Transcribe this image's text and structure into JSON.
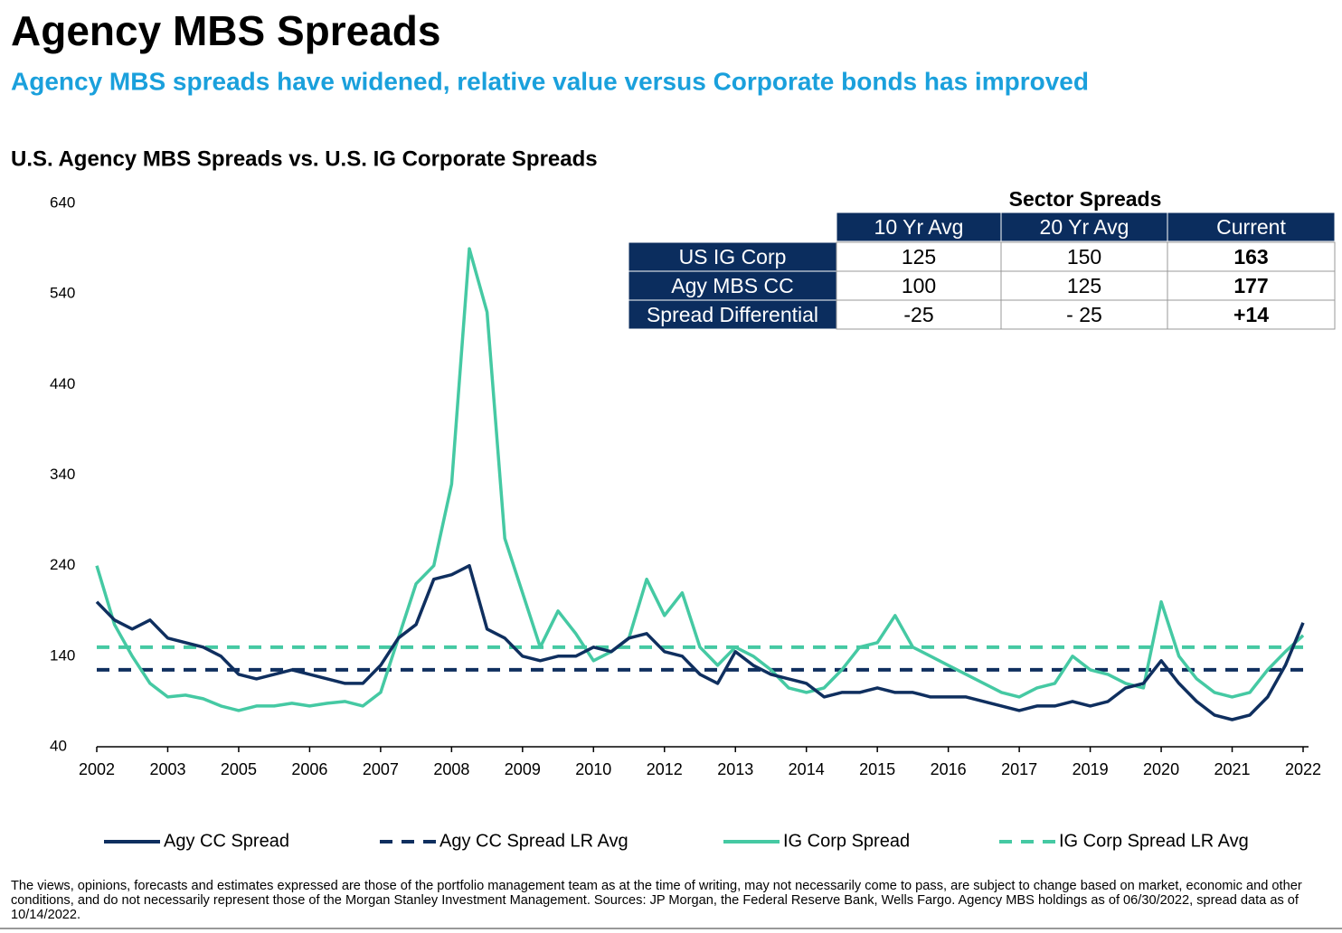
{
  "header": {
    "title": "Agency MBS Spreads",
    "subtitle": "Agency MBS spreads have widened, relative value versus Corporate bonds has improved"
  },
  "chart_data": {
    "type": "line",
    "title": "U.S. Agency MBS Spreads vs. U.S. IG Corporate Spreads",
    "categories": [
      "2002",
      null,
      null,
      null,
      "2003",
      null,
      null,
      null,
      "2005",
      null,
      null,
      null,
      "2006",
      null,
      null,
      null,
      "2007",
      null,
      null,
      null,
      "2008",
      null,
      null,
      null,
      "2009",
      null,
      null,
      null,
      "2010",
      null,
      null,
      null,
      "2012",
      null,
      null,
      null,
      "2013",
      null,
      null,
      null,
      "2014",
      null,
      null,
      null,
      "2015",
      null,
      null,
      null,
      "2016",
      null,
      null,
      null,
      "2017",
      null,
      null,
      null,
      "2019",
      null,
      null,
      null,
      "2020",
      null,
      null,
      null,
      "2021",
      null,
      null,
      null,
      "2022"
    ],
    "series": [
      {
        "name": "Agy CC Spread",
        "color": "#0f2f5f",
        "values": [
          200,
          180,
          170,
          180,
          160,
          155,
          150,
          140,
          120,
          115,
          120,
          125,
          120,
          115,
          110,
          110,
          130,
          160,
          175,
          225,
          230,
          240,
          170,
          160,
          140,
          135,
          140,
          140,
          150,
          145,
          160,
          165,
          145,
          140,
          120,
          110,
          145,
          130,
          120,
          115,
          110,
          95,
          100,
          100,
          105,
          100,
          100,
          95,
          95,
          95,
          90,
          85,
          80,
          85,
          85,
          90,
          85,
          90,
          105,
          110,
          135,
          110,
          90,
          75,
          70,
          75,
          95,
          130,
          177
        ]
      },
      {
        "name": "Agy CC Spread LR Avg",
        "color": "#0f2f5f",
        "dashed": true,
        "value": 125
      },
      {
        "name": "IG Corp Spread",
        "color": "#45c9a3",
        "values": [
          240,
          175,
          140,
          110,
          95,
          97,
          93,
          85,
          80,
          85,
          85,
          88,
          85,
          88,
          90,
          85,
          100,
          160,
          220,
          240,
          330,
          590,
          520,
          270,
          210,
          150,
          190,
          165,
          135,
          145,
          160,
          225,
          185,
          210,
          150,
          130,
          150,
          140,
          125,
          105,
          100,
          105,
          125,
          150,
          155,
          185,
          150,
          140,
          130,
          120,
          110,
          100,
          95,
          105,
          110,
          140,
          125,
          120,
          110,
          105,
          200,
          140,
          115,
          100,
          95,
          100,
          125,
          145,
          163
        ]
      },
      {
        "name": "IG Corp Spread LR Avg",
        "color": "#45c9a3",
        "dashed": true,
        "value": 150
      }
    ],
    "ylim": [
      40,
      640
    ],
    "yticks": [
      40,
      140,
      240,
      340,
      440,
      540,
      640
    ]
  },
  "table": {
    "title": "Sector Spreads",
    "columns": [
      "10 Yr Avg",
      "20 Yr Avg",
      "Current"
    ],
    "rows": [
      {
        "label": "US IG Corp",
        "cells": [
          "125",
          "150",
          "163"
        ]
      },
      {
        "label": "Agy MBS CC",
        "cells": [
          "100",
          "125",
          "177"
        ]
      },
      {
        "label": "Spread Differential",
        "cells": [
          "-25",
          "- 25",
          "+14"
        ]
      }
    ]
  },
  "footnote": "The views, opinions, forecasts and estimates expressed are those of the portfolio management team as at the time of writing, may not necessarily come to pass, are subject to change based on market, economic and other conditions, and do not necessarily represent those of the Morgan Stanley Investment Management. Sources: JP Morgan, the Federal Reserve Bank, Wells Fargo. Agency MBS holdings as of 06/30/2022, spread data as of 10/14/2022."
}
